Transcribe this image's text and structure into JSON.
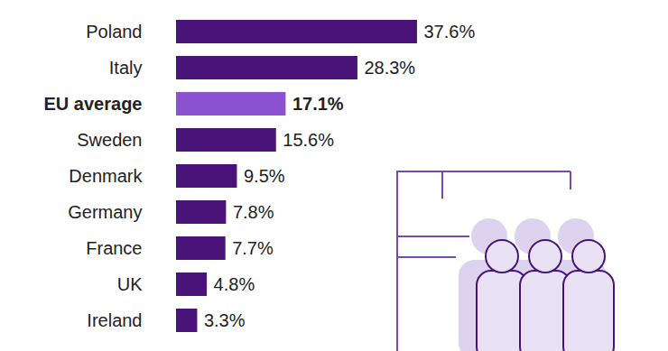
{
  "chart_data": {
    "type": "bar",
    "orientation": "horizontal",
    "categories": [
      "Poland",
      "Italy",
      "EU average",
      "Sweden",
      "Denmark",
      "Germany",
      "France",
      "UK",
      "Ireland"
    ],
    "values": [
      37.6,
      28.3,
      17.1,
      15.6,
      9.5,
      7.8,
      7.7,
      4.8,
      3.3
    ],
    "value_labels": [
      "37.6%",
      "28.3%",
      "17.1%",
      "15.6%",
      "9.5%",
      "7.8%",
      "7.7%",
      "4.8%",
      "3.3%"
    ],
    "colors": [
      "#4a1379",
      "#4a1379",
      "#8b52d1",
      "#4a1379",
      "#4a1379",
      "#4a1379",
      "#4a1379",
      "#4a1379",
      "#4a1379"
    ],
    "xlim": [
      0,
      40
    ],
    "data_labels": true,
    "tick_labels": "y",
    "grid": false
  }
}
